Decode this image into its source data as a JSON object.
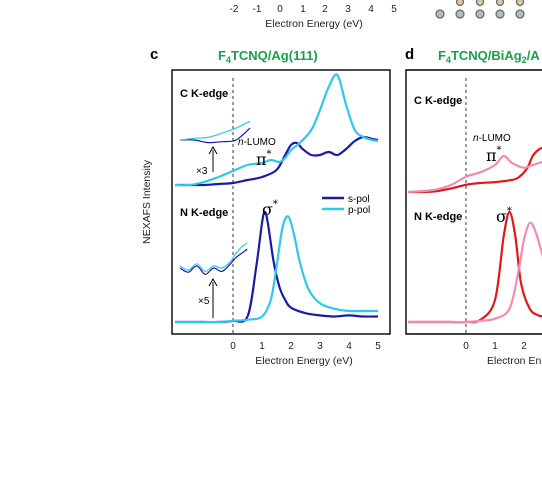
{
  "colors": {
    "c_s_pol": "#1a1aa8",
    "c_p_pol": "#2ec8e8",
    "d_s_pol": "#e01818",
    "d_p_pol": "#f08cb4",
    "title_green": "#1aa04a",
    "atoms": [
      "#d8c8a8",
      "#b8b8b8"
    ]
  },
  "top_fragment": {
    "ticks": [
      "-2",
      "-1",
      "0",
      "1",
      "2",
      "3",
      "4",
      "5"
    ],
    "xlabel": "Electron Energy (eV)"
  },
  "panel_c": {
    "letter": "c",
    "title_parts": [
      "F",
      "4",
      "TCNQ/Ag(111)"
    ],
    "ylabel": "NEXAFS Intensity",
    "xlabel": "Electron Energy (eV)",
    "x_ticks": [
      "0",
      "1",
      "2",
      "3",
      "4",
      "5"
    ],
    "c_edge": "C K-edge",
    "n_edge": "N K-edge",
    "lumo": "-LUMO",
    "lumo_prefix": "n",
    "pi": "π",
    "sigma": "σ",
    "star": "*",
    "mult_c": "×3",
    "mult_n": "×5",
    "legend": [
      "s-pol",
      "p-pol"
    ]
  },
  "panel_d": {
    "letter": "d",
    "title_parts": [
      "F",
      "4",
      "TCNQ/BiAg",
      "2",
      "/A"
    ],
    "xlabel": "Electron En",
    "x_ticks": [
      "0",
      "1",
      "2"
    ],
    "c_edge": "C K-edge",
    "n_edge": "N K-edge",
    "lumo": "-LUMO",
    "lumo_prefix": "n",
    "pi": "π",
    "sigma": "σ",
    "star": "*"
  },
  "chart_data": [
    {
      "type": "line",
      "panel": "c",
      "xlabel": "Electron Energy (eV)",
      "ylabel": "NEXAFS Intensity",
      "xlim": [
        -2.1,
        5.3
      ],
      "series": [
        {
          "name": "s-pol",
          "edge": "C K-edge",
          "x": [
            -2.0,
            -1.5,
            -1.0,
            -0.5,
            0.0,
            0.5,
            1.0,
            1.5,
            1.8,
            2.0,
            2.2,
            2.4,
            2.7,
            3.0,
            3.3,
            3.6,
            3.9,
            4.2,
            4.5,
            4.8,
            5.0
          ],
          "y": [
            0.0,
            0.0,
            0.0,
            0.01,
            0.02,
            0.05,
            0.08,
            0.15,
            0.3,
            0.4,
            0.42,
            0.36,
            0.3,
            0.3,
            0.33,
            0.3,
            0.36,
            0.44,
            0.48,
            0.46,
            0.45
          ]
        },
        {
          "name": "p-pol",
          "edge": "C K-edge",
          "x": [
            -2.0,
            -1.5,
            -1.0,
            -0.5,
            0.0,
            0.5,
            1.0,
            1.3,
            1.6,
            1.8,
            2.0,
            2.3,
            2.7,
            3.0,
            3.3,
            3.6,
            3.9,
            4.2,
            4.5,
            4.8,
            5.0
          ],
          "y": [
            0.0,
            0.0,
            0.03,
            0.08,
            0.14,
            0.2,
            0.22,
            0.25,
            0.23,
            0.27,
            0.35,
            0.42,
            0.55,
            0.75,
            0.98,
            1.1,
            0.8,
            0.55,
            0.48,
            0.45,
            0.44
          ]
        },
        {
          "name": "s-pol",
          "edge": "N K-edge",
          "x": [
            -2.0,
            -1.5,
            -1.0,
            -0.5,
            0.0,
            0.5,
            0.8,
            1.0,
            1.1,
            1.2,
            1.4,
            1.6,
            1.8,
            2.0,
            2.5,
            3.0,
            3.5,
            4.0,
            4.5,
            5.0
          ],
          "y": [
            0.0,
            0.0,
            0.0,
            0.0,
            0.01,
            0.05,
            0.5,
            0.9,
            1.0,
            0.9,
            0.55,
            0.32,
            0.2,
            0.13,
            0.08,
            0.06,
            0.05,
            0.06,
            0.05,
            0.05
          ]
        },
        {
          "name": "p-pol",
          "edge": "N K-edge",
          "x": [
            -2.0,
            -1.5,
            -1.0,
            -0.5,
            0.0,
            0.5,
            1.0,
            1.3,
            1.5,
            1.7,
            1.9,
            2.1,
            2.3,
            2.6,
            3.0,
            3.5,
            4.0,
            4.5,
            5.0
          ],
          "y": [
            0.0,
            0.0,
            0.0,
            0.0,
            0.01,
            0.02,
            0.05,
            0.2,
            0.5,
            0.85,
            0.96,
            0.8,
            0.55,
            0.3,
            0.17,
            0.12,
            0.1,
            0.1,
            0.1
          ]
        },
        {
          "name": "s-pol",
          "edge": "C K-edge inset x3",
          "x": [
            -2.0,
            -1.5,
            -1.0,
            -0.5,
            0.0,
            0.5
          ],
          "y": [
            0.0,
            0.0,
            -0.03,
            -0.02,
            0.0,
            0.14
          ]
        },
        {
          "name": "p-pol",
          "edge": "C K-edge inset x3",
          "x": [
            -2.0,
            -1.5,
            -1.0,
            -0.5,
            0.0,
            0.5
          ],
          "y": [
            0.0,
            0.02,
            0.03,
            0.08,
            0.14,
            0.22
          ]
        },
        {
          "name": "s-pol",
          "edge": "N K-edge inset x5",
          "x": [
            -2.0,
            -1.7,
            -1.4,
            -1.1,
            -0.8,
            -0.5,
            -0.2,
            0.0,
            0.2,
            0.4
          ],
          "y": [
            0.0,
            -0.1,
            0.05,
            -0.15,
            0.0,
            -0.08,
            0.1,
            0.25,
            0.35,
            0.45
          ]
        },
        {
          "name": "p-pol",
          "edge": "N K-edge inset x5",
          "x": [
            -2.0,
            -1.7,
            -1.4,
            -1.1,
            -0.8,
            -0.5,
            -0.2,
            0.0,
            0.2,
            0.4
          ],
          "y": [
            0.05,
            -0.05,
            0.1,
            -0.08,
            0.05,
            0.0,
            0.15,
            0.35,
            0.5,
            0.6
          ]
        }
      ]
    },
    {
      "type": "line",
      "panel": "d",
      "xlabel": "Electron En",
      "xlim": [
        -2.1,
        2.7
      ],
      "series": [
        {
          "name": "s-pol",
          "edge": "C K-edge",
          "x": [
            -2.0,
            -1.5,
            -1.0,
            -0.5,
            0.0,
            0.5,
            1.0,
            1.5,
            1.8,
            2.1,
            2.3,
            2.5,
            2.7
          ],
          "y": [
            0.0,
            0.0,
            0.01,
            0.04,
            0.08,
            0.1,
            0.11,
            0.13,
            0.16,
            0.26,
            0.4,
            0.47,
            0.5
          ]
        },
        {
          "name": "p-pol",
          "edge": "C K-edge",
          "x": [
            -2.0,
            -1.5,
            -1.0,
            -0.5,
            0.0,
            0.5,
            1.0,
            1.3,
            1.6,
            2.0,
            2.3,
            2.7
          ],
          "y": [
            0.0,
            0.01,
            0.03,
            0.08,
            0.17,
            0.22,
            0.3,
            0.4,
            0.32,
            0.27,
            0.3,
            0.34
          ]
        },
        {
          "name": "s-pol",
          "edge": "N K-edge",
          "x": [
            -2.0,
            -1.5,
            -1.0,
            -0.5,
            0.0,
            0.5,
            1.0,
            1.3,
            1.5,
            1.7,
            1.9,
            2.2,
            2.5,
            2.7
          ],
          "y": [
            0.0,
            0.0,
            0.0,
            0.0,
            0.0,
            0.02,
            0.2,
            0.78,
            1.0,
            0.78,
            0.35,
            0.12,
            0.06,
            0.05
          ]
        },
        {
          "name": "p-pol",
          "edge": "N K-edge",
          "x": [
            -2.0,
            -1.5,
            -1.0,
            -0.5,
            0.0,
            0.5,
            1.0,
            1.5,
            1.8,
            2.0,
            2.2,
            2.4,
            2.7
          ],
          "y": [
            0.0,
            0.0,
            0.0,
            0.0,
            0.0,
            0.01,
            0.03,
            0.12,
            0.45,
            0.75,
            0.9,
            0.82,
            0.55
          ]
        }
      ]
    }
  ]
}
